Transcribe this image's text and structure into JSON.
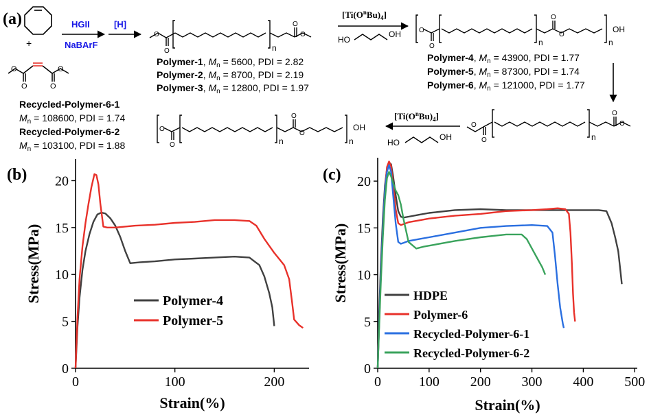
{
  "scheme": {
    "panel_label": "(a)",
    "reagents_step1_top": "HGII",
    "reagents_step1_bottom": "NaBArF",
    "reagent_step2": "[H]",
    "plus_sign": "+",
    "catalyst": "[Ti(OnBu)4]",
    "repeat_index": "n",
    "hydroxyl_end": "OH",
    "diol_label_left": "HO",
    "diol_label_right": "OH",
    "group_1": [
      {
        "name": "Polymer-1",
        "mn_label": "M",
        "mn_sub": "n",
        "mn_value": " = 5600, PDI = 2.82"
      },
      {
        "name": "Polymer-2",
        "mn_label": "M",
        "mn_sub": "n",
        "mn_value": " = 8700, PDI = 2.19"
      },
      {
        "name": "Polymer-3",
        "mn_label": "M",
        "mn_sub": "n",
        "mn_value": " = 12800, PDI = 1.97"
      }
    ],
    "group_2": [
      {
        "name": "Polymer-4",
        "mn_label": "M",
        "mn_sub": "n",
        "mn_value": " = 43900, PDI = 1.77"
      },
      {
        "name": "Polymer-5",
        "mn_label": "M",
        "mn_sub": "n",
        "mn_value": " = 87300, PDI = 1.74"
      },
      {
        "name": "Polymer-6",
        "mn_label": "M",
        "mn_sub": "n",
        "mn_value": " = 121000, PDI = 1.77"
      }
    ],
    "recycled": [
      {
        "name": "Recycled-Polymer-6-1",
        "mn_label": "M",
        "mn_sub": "n",
        "mn_value": " = 108600, PDI = 1.74"
      },
      {
        "name": "Recycled-Polymer-6-2",
        "mn_label": "M",
        "mn_sub": "n",
        "mn_value": " = 103100, PDI = 1.88"
      }
    ]
  },
  "chart_data": [
    {
      "panel": "(b)",
      "type": "line",
      "xlabel": "Strain(%)",
      "ylabel": "Stress(MPa)",
      "xlim": [
        0,
        235
      ],
      "ylim": [
        0,
        22.3
      ],
      "xticks": [
        0,
        100,
        200
      ],
      "yticks": [
        0,
        5,
        10,
        15,
        20
      ],
      "grid": false,
      "legend": "bottom-center",
      "series": [
        {
          "name": "Polymer-4",
          "color": "#404040",
          "x": [
            0,
            2,
            4,
            7,
            10,
            14,
            18,
            22,
            26,
            30,
            35,
            40,
            45,
            50,
            55,
            65,
            80,
            100,
            120,
            140,
            160,
            175,
            185,
            190,
            195,
            198,
            200
          ],
          "y": [
            0,
            4.5,
            7.5,
            10.5,
            12.5,
            14.3,
            15.6,
            16.4,
            16.6,
            16.5,
            16.0,
            15.2,
            14.0,
            12.5,
            11.2,
            11.3,
            11.4,
            11.6,
            11.7,
            11.8,
            11.9,
            11.8,
            11.0,
            9.8,
            8.0,
            6.5,
            4.5
          ]
        },
        {
          "name": "Polymer-5",
          "color": "#e8312a",
          "x": [
            0,
            2,
            4,
            7,
            10,
            13,
            16,
            19,
            21,
            23,
            25,
            28,
            32,
            40,
            60,
            80,
            100,
            120,
            140,
            160,
            175,
            182,
            190,
            200,
            210,
            215,
            218,
            220,
            225,
            229
          ],
          "y": [
            0,
            5.5,
            9.5,
            13.0,
            15.5,
            17.5,
            19.3,
            20.7,
            20.6,
            19.6,
            17.5,
            15.1,
            15.0,
            15.0,
            15.2,
            15.3,
            15.5,
            15.6,
            15.8,
            15.8,
            15.7,
            15.2,
            13.8,
            12.3,
            11.0,
            9.5,
            7.0,
            5.2,
            4.6,
            4.3
          ]
        }
      ]
    },
    {
      "panel": "(c)",
      "type": "line",
      "xlabel": "Strain(%)",
      "ylabel": "Stress(MPa)",
      "xlim": [
        0,
        505
      ],
      "ylim": [
        0,
        22.5
      ],
      "xticks": [
        0,
        100,
        200,
        300,
        400,
        500
      ],
      "yticks": [
        0,
        5,
        10,
        15,
        20
      ],
      "grid": false,
      "legend": "bottom-left",
      "series": [
        {
          "name": "HDPE",
          "color": "#404040",
          "x": [
            0,
            3,
            6,
            10,
            14,
            18,
            22,
            26,
            30,
            35,
            40,
            45,
            50,
            60,
            80,
            100,
            150,
            200,
            250,
            300,
            350,
            400,
            430,
            445,
            455,
            462,
            468,
            472,
            475
          ],
          "y": [
            0,
            6.0,
            11.0,
            16.0,
            19.5,
            21.3,
            22.0,
            21.8,
            20.5,
            18.5,
            16.8,
            16.2,
            16.1,
            16.2,
            16.4,
            16.6,
            16.9,
            17.0,
            16.9,
            16.9,
            16.9,
            16.9,
            16.9,
            16.8,
            15.5,
            14.0,
            12.5,
            10.5,
            9.0
          ]
        },
        {
          "name": "Polymer-6",
          "color": "#e8312a",
          "x": [
            0,
            3,
            6,
            10,
            14,
            18,
            22,
            26,
            30,
            35,
            40,
            45,
            50,
            60,
            80,
            100,
            150,
            200,
            250,
            300,
            330,
            350,
            365,
            372,
            375,
            378,
            380,
            382,
            384
          ],
          "y": [
            0,
            5.0,
            10.0,
            15.0,
            19.0,
            21.5,
            22.1,
            21.6,
            19.5,
            17.0,
            15.5,
            15.3,
            15.4,
            15.6,
            15.8,
            16.0,
            16.3,
            16.5,
            16.8,
            16.9,
            17.0,
            17.1,
            17.0,
            16.5,
            14.5,
            11.0,
            8.0,
            6.0,
            5.0
          ]
        },
        {
          "name": "Recycled-Polymer-6-1",
          "color": "#2a6fe0",
          "x": [
            0,
            3,
            6,
            10,
            14,
            18,
            22,
            26,
            30,
            35,
            40,
            45,
            50,
            60,
            80,
            100,
            150,
            200,
            250,
            300,
            330,
            340,
            345,
            350,
            355,
            360,
            362
          ],
          "y": [
            0,
            5.0,
            10.0,
            15.0,
            19.0,
            21.0,
            21.7,
            21.0,
            18.5,
            15.5,
            13.5,
            13.3,
            13.4,
            13.6,
            13.8,
            14.0,
            14.5,
            15.0,
            15.2,
            15.3,
            15.2,
            14.5,
            12.0,
            9.0,
            6.5,
            4.8,
            4.3
          ]
        },
        {
          "name": "Recycled-Polymer-6-2",
          "color": "#3aa35c",
          "x": [
            0,
            3,
            6,
            10,
            14,
            18,
            22,
            26,
            30,
            35,
            40,
            45,
            50,
            60,
            75,
            90,
            110,
            150,
            200,
            250,
            280,
            290,
            300,
            310,
            320,
            326
          ],
          "y": [
            0,
            4.5,
            9.0,
            14.0,
            18.0,
            20.3,
            21.0,
            20.5,
            19.8,
            19.0,
            18.5,
            17.5,
            16.0,
            13.5,
            12.8,
            13.0,
            13.2,
            13.6,
            14.0,
            14.3,
            14.3,
            13.8,
            12.8,
            11.8,
            10.8,
            10.0
          ]
        }
      ]
    }
  ]
}
